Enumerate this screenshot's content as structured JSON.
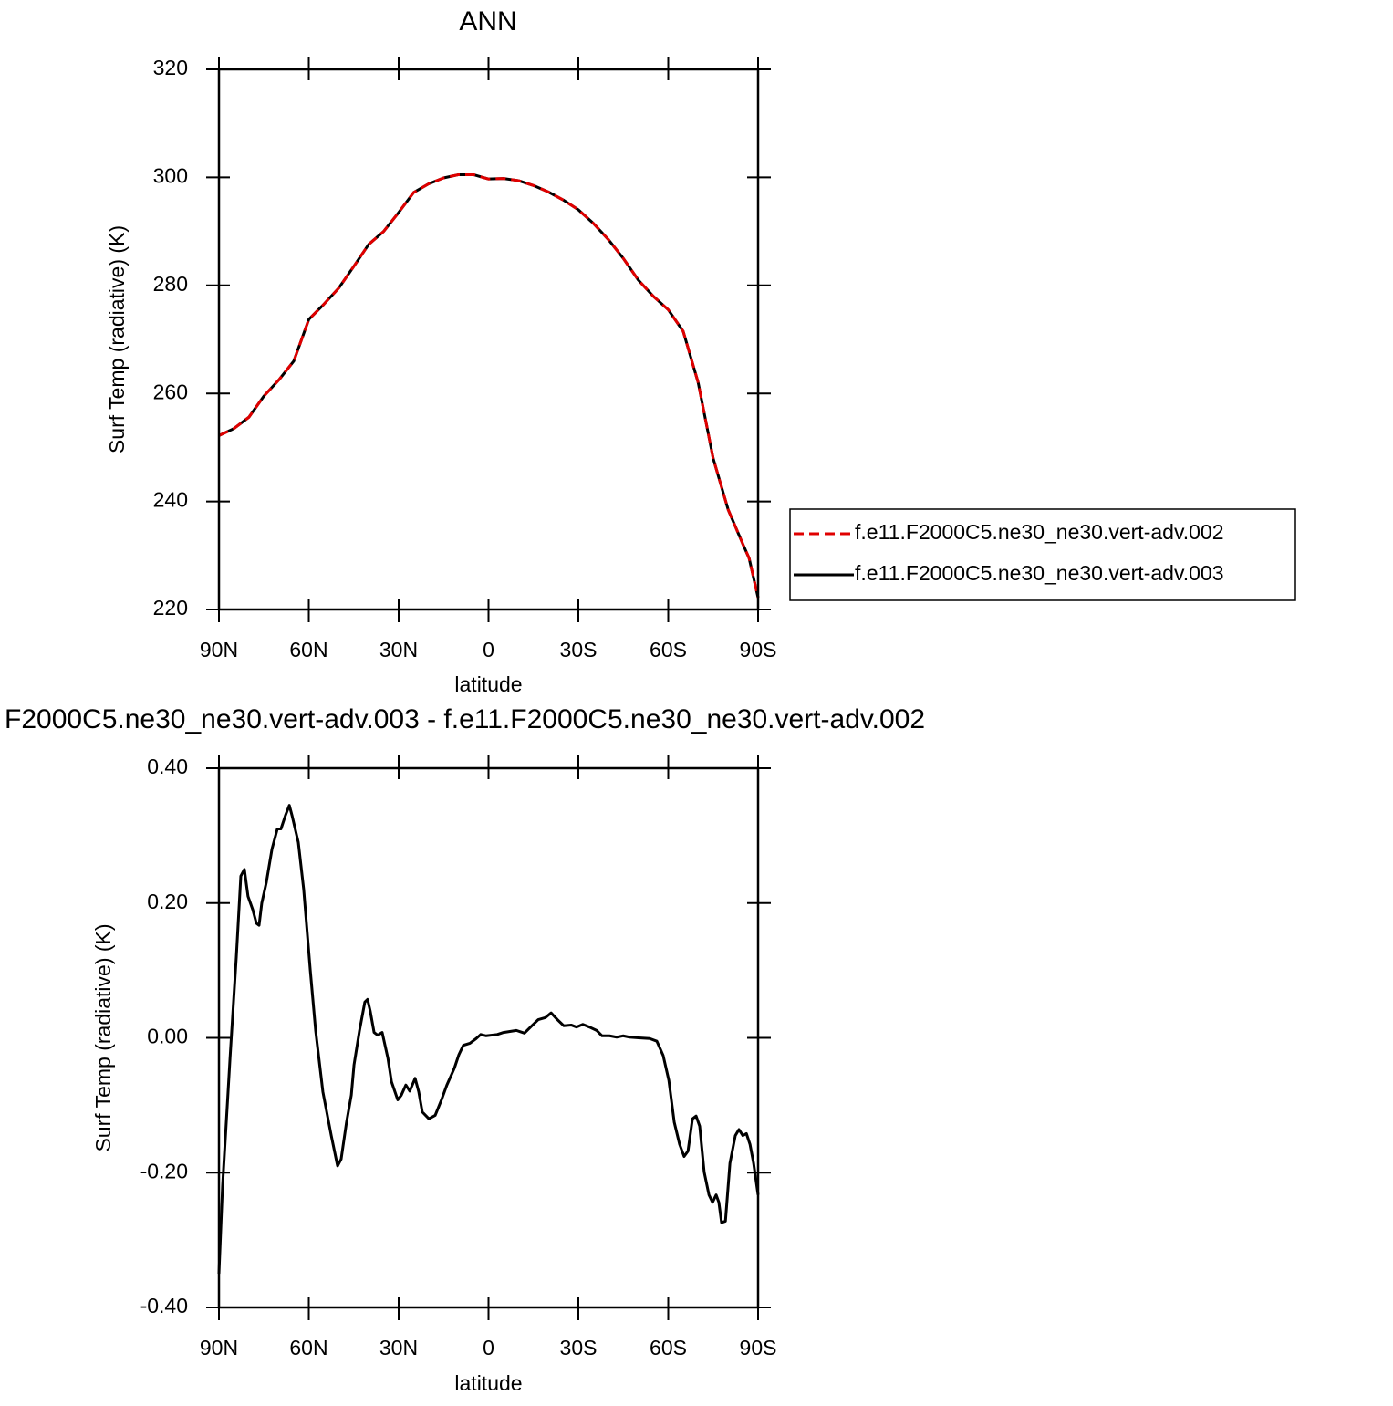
{
  "chart_data": [
    {
      "type": "line",
      "title": "ANN",
      "xlabel": "latitude",
      "ylabel": "Surf Temp (radiative) (K)",
      "xlim": [
        90,
        -90
      ],
      "xticks": [
        {
          "value": 90,
          "label": "90N"
        },
        {
          "value": 60,
          "label": "60N"
        },
        {
          "value": 30,
          "label": "30N"
        },
        0,
        {
          "value": -30,
          "label": "30S"
        },
        {
          "value": -60,
          "label": "60S"
        },
        {
          "value": -90,
          "label": "90S"
        }
      ],
      "ylim": [
        220,
        320
      ],
      "yticks": [
        220,
        240,
        260,
        280,
        300,
        320
      ],
      "legend": "right",
      "x": [
        90,
        85,
        80,
        75,
        70,
        65,
        60,
        55,
        50,
        45,
        40,
        35,
        30,
        25,
        20,
        15,
        10,
        5,
        0,
        -5,
        -10,
        -15,
        -20,
        -25,
        -30,
        -35,
        -40,
        -45,
        -50,
        -55,
        -60,
        -65,
        -70,
        -75,
        -80,
        -85,
        -87,
        -90
      ],
      "series": [
        {
          "name": "f.e11.F2000C5.ne30_ne30.vert-adv.002",
          "color": "#e00000",
          "linestyle": "dashed",
          "values": [
            252.2,
            253.5,
            255.6,
            259.5,
            262.5,
            266,
            273.7,
            276.5,
            279.5,
            283.5,
            287.6,
            290,
            293.5,
            297.2,
            298.8,
            299.9,
            300.5,
            300.5,
            299.7,
            299.8,
            299.4,
            298.5,
            297.3,
            295.8,
            294,
            291.5,
            288.5,
            285,
            281,
            278,
            275.5,
            271.5,
            262,
            248,
            238.5,
            232,
            229.5,
            222.2
          ]
        },
        {
          "name": "f.e11.F2000C5.ne30_ne30.vert-adv.003",
          "color": "#000000",
          "linestyle": "solid",
          "values": [
            252.2,
            253.5,
            255.6,
            259.5,
            262.5,
            266,
            273.7,
            276.5,
            279.5,
            283.5,
            287.6,
            290,
            293.5,
            297.2,
            298.8,
            299.9,
            300.5,
            300.5,
            299.7,
            299.8,
            299.4,
            298.5,
            297.3,
            295.8,
            294,
            291.5,
            288.5,
            285,
            281,
            278,
            275.5,
            271.5,
            262,
            248,
            238.5,
            232,
            229.5,
            222.2
          ]
        }
      ]
    },
    {
      "type": "line",
      "title": "F2000C5.ne30_ne30.vert-adv.003 - f.e11.F2000C5.ne30_ne30.vert-adv.002",
      "xlabel": "latitude",
      "ylabel": "Surf Temp (radiative) (K)",
      "xlim": [
        90,
        -90
      ],
      "xticks": [
        {
          "value": 90,
          "label": "90N"
        },
        {
          "value": 60,
          "label": "60N"
        },
        {
          "value": 30,
          "label": "30N"
        },
        0,
        {
          "value": -30,
          "label": "30S"
        },
        {
          "value": -60,
          "label": "60S"
        },
        {
          "value": -90,
          "label": "90S"
        }
      ],
      "ylim": [
        -0.4,
        0.4
      ],
      "yticks": [
        {
          "value": -0.4,
          "label": "-0.40"
        },
        {
          "value": -0.2,
          "label": "-0.20"
        },
        {
          "value": 0,
          "label": "0.00"
        },
        {
          "value": 0.2,
          "label": "0.20"
        },
        {
          "value": 0.4,
          "label": "0.40"
        }
      ],
      "x": [
        90,
        88.8,
        86.3,
        84.2,
        82.7,
        81.5,
        80.3,
        78.7,
        77.5,
        76.6,
        75.7,
        74.2,
        72.3,
        70.5,
        69.3,
        67.8,
        66.5,
        65.6,
        63.5,
        61.7,
        59.5,
        57.7,
        55.3,
        52.5,
        50.4,
        49.2,
        47.4,
        45.8,
        44.9,
        43.1,
        41.3,
        40.4,
        39.5,
        38.2,
        37,
        35.5,
        33.6,
        32.4,
        30.3,
        29.1,
        27.6,
        26.3,
        24.5,
        23.3,
        22.1,
        19.9,
        17.8,
        15.7,
        13.9,
        11.4,
        9.9,
        8.4,
        6.2,
        4.1,
        2.6,
        0.8,
        -2.9,
        -5,
        -9.3,
        -12,
        -14.5,
        -16.6,
        -19,
        -20.9,
        -23,
        -25.1,
        -27.6,
        -29.4,
        -31.5,
        -33.7,
        -36.1,
        -37.9,
        -40.4,
        -42.8,
        -44.9,
        -47.1,
        -50.1,
        -53.8,
        -56.2,
        -58.3,
        -60.2,
        -62,
        -63.8,
        -65.3,
        -66.6,
        -68.1,
        -69.3,
        -70.5,
        -72,
        -73.6,
        -74.8,
        -76,
        -76.9,
        -77.8,
        -79.1,
        -80.6,
        -82.4,
        -83.6,
        -84.9,
        -86.1,
        -87.3,
        -88.5,
        -90
      ],
      "series": [
        {
          "color": "#000000",
          "linestyle": "solid",
          "values": [
            -0.35,
            -0.22,
            -0.03,
            0.12,
            0.24,
            0.25,
            0.21,
            0.19,
            0.17,
            0.167,
            0.2,
            0.23,
            0.28,
            0.31,
            0.31,
            0.33,
            0.345,
            0.33,
            0.29,
            0.22,
            0.1,
            0.01,
            -0.08,
            -0.145,
            -0.19,
            -0.18,
            -0.125,
            -0.085,
            -0.04,
            0.01,
            0.053,
            0.057,
            0.04,
            0.008,
            0.004,
            0.008,
            -0.03,
            -0.065,
            -0.092,
            -0.085,
            -0.07,
            -0.079,
            -0.06,
            -0.08,
            -0.11,
            -0.12,
            -0.115,
            -0.092,
            -0.07,
            -0.045,
            -0.025,
            -0.011,
            -0.008,
            -0.001,
            0.005,
            0.003,
            0.005,
            0.008,
            0.011,
            0.007,
            0.018,
            0.027,
            0.03,
            0.037,
            0.027,
            0.018,
            0.019,
            0.016,
            0.02,
            0.016,
            0.011,
            0.003,
            0.003,
            0.001,
            0.003,
            0.001,
            0,
            -0.001,
            -0.005,
            -0.026,
            -0.063,
            -0.125,
            -0.158,
            -0.176,
            -0.168,
            -0.12,
            -0.116,
            -0.131,
            -0.199,
            -0.233,
            -0.244,
            -0.233,
            -0.244,
            -0.274,
            -0.272,
            -0.186,
            -0.145,
            -0.136,
            -0.145,
            -0.142,
            -0.158,
            -0.186,
            -0.233
          ]
        }
      ]
    }
  ]
}
